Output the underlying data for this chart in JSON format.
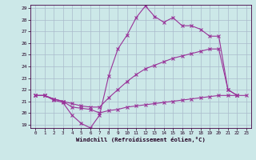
{
  "xlabel": "Windchill (Refroidissement éolien,°C)",
  "bg_color": "#cce8e8",
  "grid_color": "#aabbcc",
  "line_color": "#993399",
  "xlim": [
    0,
    23
  ],
  "ylim": [
    19,
    29
  ],
  "xticks": [
    0,
    1,
    2,
    3,
    4,
    5,
    6,
    7,
    8,
    9,
    10,
    11,
    12,
    13,
    14,
    15,
    16,
    17,
    18,
    19,
    20,
    21,
    22,
    23
  ],
  "yticks": [
    19,
    20,
    21,
    22,
    23,
    24,
    25,
    26,
    27,
    28,
    29
  ],
  "line1_x": [
    0,
    1,
    2,
    3,
    4,
    5,
    6,
    7,
    8,
    9,
    10,
    11,
    12,
    13,
    14,
    15,
    16,
    17,
    18,
    19,
    20,
    21,
    22
  ],
  "line1_y": [
    21.5,
    21.5,
    21.1,
    20.9,
    19.8,
    19.1,
    18.7,
    19.8,
    23.2,
    25.5,
    26.7,
    28.2,
    29.2,
    28.3,
    27.8,
    28.2,
    27.5,
    27.5,
    27.2,
    26.6,
    26.6,
    22.0,
    21.5
  ],
  "line2_x": [
    0,
    1,
    2,
    3,
    4,
    5,
    6,
    7,
    8,
    9,
    10,
    11,
    12,
    13,
    14,
    15,
    16,
    17,
    18,
    19,
    20,
    21,
    22
  ],
  "line2_y": [
    21.5,
    21.5,
    21.2,
    21.0,
    20.8,
    20.6,
    20.5,
    20.5,
    21.3,
    22.0,
    22.7,
    23.3,
    23.8,
    24.1,
    24.4,
    24.7,
    24.9,
    25.1,
    25.3,
    25.5,
    25.5,
    22.0,
    21.5
  ],
  "line3_x": [
    0,
    1,
    2,
    3,
    4,
    5,
    6,
    7,
    8,
    9,
    10,
    11,
    12,
    13,
    14,
    15,
    16,
    17,
    18,
    19,
    20,
    21,
    22,
    23
  ],
  "line3_y": [
    21.5,
    21.5,
    21.2,
    21.0,
    20.5,
    20.4,
    20.3,
    20.0,
    20.2,
    20.3,
    20.5,
    20.6,
    20.7,
    20.8,
    20.9,
    21.0,
    21.1,
    21.2,
    21.3,
    21.4,
    21.5,
    21.5,
    21.5,
    21.5
  ]
}
